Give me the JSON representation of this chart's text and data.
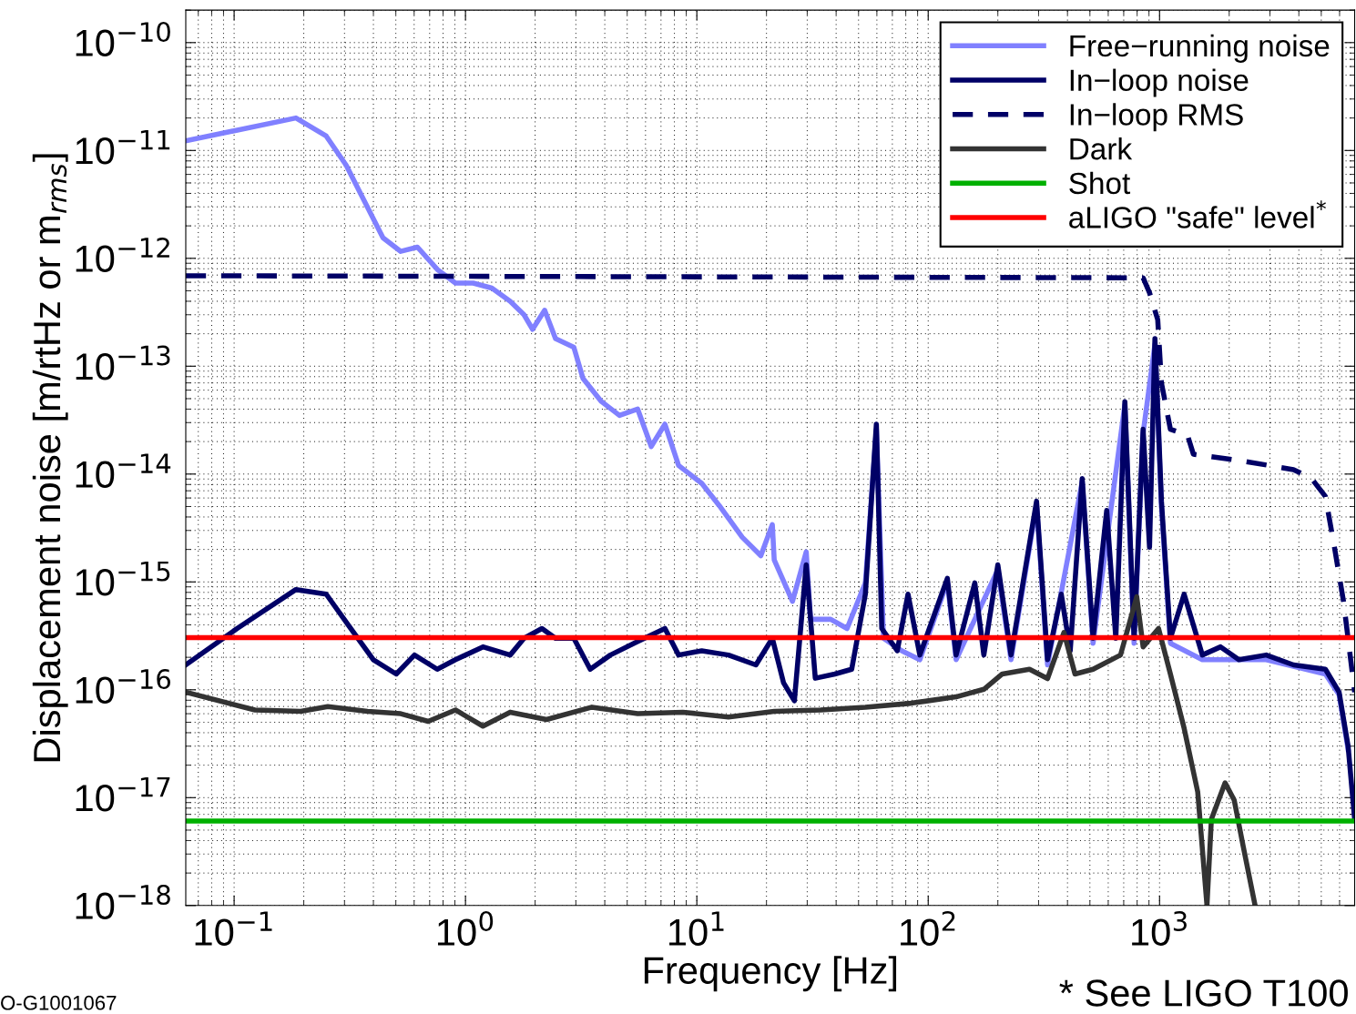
{
  "chart_data": {
    "type": "line",
    "xlabel": "Frequency [Hz]",
    "ylabel": "Displacement noise [m/rtHz or m$_{rms}$]",
    "log": "xy",
    "grid": true,
    "legend": "top right",
    "xlim": [
      0.0618,
      6970
    ],
    "ylim": [
      1e-18,
      2e-10
    ],
    "xticks": [
      {
        "value": 0.1,
        "label": "10$^{−1}$"
      },
      {
        "value": 1,
        "label": "10$^{0}$"
      },
      {
        "value": 10,
        "label": "10$^{1}$"
      },
      {
        "value": 100,
        "label": "10$^{2}$"
      },
      {
        "value": 1000,
        "label": "10$^{3}$"
      }
    ],
    "yticks": [
      {
        "value": 1e-18,
        "label": "10$^{−18}$"
      },
      {
        "value": 1e-17,
        "label": "10$^{−17}$"
      },
      {
        "value": 1e-16,
        "label": "10$^{−16}$"
      },
      {
        "value": 1e-15,
        "label": "10$^{−15}$"
      },
      {
        "value": 1e-14,
        "label": "10$^{−14}$"
      },
      {
        "value": 1e-13,
        "label": "10$^{−13}$"
      },
      {
        "value": 1e-12,
        "label": "10$^{−12}$"
      },
      {
        "value": 1e-11,
        "label": "10$^{−11}$"
      },
      {
        "value": 1e-10,
        "label": "10$^{−10}$"
      }
    ],
    "annotations": [
      "* See LIGO T100",
      "O-G1001067"
    ],
    "series": [
      {
        "name": "Free−running noise",
        "color": "#8080ff",
        "line_style": "solid",
        "x": [
          0.0618,
          0.185,
          0.25,
          0.305,
          0.44,
          0.525,
          0.62,
          0.755,
          0.905,
          1.08,
          1.3,
          1.56,
          1.79,
          1.95,
          2.2,
          2.45,
          2.94,
          3.22,
          3.87,
          4.63,
          5.55,
          6.35,
          7.28,
          8.34,
          10.5,
          12.5,
          15.7,
          18.9,
          21.2,
          21.6,
          25.9,
          29.7,
          31,
          37.9,
          44.6,
          53.5,
          59.7,
          64.1,
          76.9,
          92,
          121,
          132,
          200,
          228,
          294,
          328,
          463,
          516,
          708,
          776,
          849,
          955,
          1019,
          1114,
          1531,
          2892,
          5210,
          5970,
          6530
        ],
        "values": [
          1.23e-11,
          2e-11,
          1.36e-11,
          7.3e-12,
          1.55e-12,
          1.16e-12,
          1.27e-12,
          7.9e-13,
          5.9e-13,
          5.9e-13,
          5.3e-13,
          4e-13,
          3e-13,
          2.2e-13,
          3.3e-13,
          1.8e-13,
          1.5e-13,
          7.7e-14,
          4.7e-14,
          3.5e-14,
          4e-14,
          1.8e-14,
          2.9e-14,
          1.2e-14,
          8.2e-15,
          5.1e-15,
          2.6e-15,
          1.75e-15,
          3.4e-15,
          1.6e-15,
          6.6e-16,
          1.9e-15,
          4.5e-16,
          4.5e-16,
          3.7e-16,
          9.8e-16,
          2.6e-14,
          3e-16,
          2.3e-16,
          1.9e-16,
          1e-15,
          1.9e-16,
          1.3e-15,
          1.9e-16,
          5.2e-15,
          1.7e-16,
          8.5e-15,
          2.7e-16,
          4.4e-14,
          2.7e-16,
          2.4e-14,
          1.6e-13,
          5e-15,
          2.7e-16,
          1.9e-16,
          1.9e-16,
          1.4e-16,
          9e-17,
          2.8e-17
        ]
      },
      {
        "name": "In−loop noise",
        "color": "#000066",
        "line_style": "solid",
        "x": [
          0.0618,
          0.103,
          0.185,
          0.25,
          0.319,
          0.4,
          0.502,
          0.602,
          0.755,
          0.905,
          1.19,
          1.56,
          1.79,
          2.14,
          2.45,
          2.94,
          3.46,
          4.23,
          5.55,
          7.28,
          8.34,
          10.5,
          13.7,
          18.0,
          21.2,
          23.7,
          26.4,
          29.7,
          32.5,
          39.5,
          46.7,
          53.5,
          59.7,
          63,
          73.5,
          81.8,
          92,
          121,
          132,
          159,
          174,
          200,
          228,
          294,
          328,
          376,
          411,
          463,
          516,
          591,
          647,
          708,
          776,
          849,
          905,
          955,
          1019,
          1114,
          1277,
          1531,
          1836,
          2202,
          2892,
          3793,
          5210,
          5970,
          6530,
          6970
        ],
        "values": [
          1.7e-16,
          3.7e-16,
          8.5e-16,
          7.7e-16,
          3.7e-16,
          1.9e-16,
          1.4e-16,
          2.1e-16,
          1.55e-16,
          1.9e-16,
          2.5e-16,
          2.1e-16,
          3e-16,
          3.7e-16,
          3e-16,
          3e-16,
          1.55e-16,
          2.1e-16,
          2.8e-16,
          3.7e-16,
          2.1e-16,
          2.3e-16,
          2.1e-16,
          1.7e-16,
          3e-16,
          1.16e-16,
          7.9e-17,
          1.44e-15,
          1.28e-16,
          1.4e-16,
          1.55e-16,
          7.7e-16,
          2.9e-14,
          3.7e-16,
          2.3e-16,
          7.7e-16,
          2.1e-16,
          1.08e-15,
          2.1e-16,
          9.8e-16,
          2.1e-16,
          1.44e-15,
          2.1e-16,
          5.6e-15,
          1.9e-16,
          7.7e-16,
          2.3e-16,
          9.1e-15,
          3e-16,
          4.6e-15,
          3e-16,
          4.7e-14,
          3e-16,
          2.6e-14,
          2.1e-15,
          1.8e-13,
          5.6e-15,
          3e-16,
          7.7e-16,
          2.1e-16,
          2.5e-16,
          1.9e-16,
          2.1e-16,
          1.7e-16,
          1.55e-16,
          9.5e-17,
          3e-17,
          6.3e-18
        ]
      },
      {
        "name": "In−loop RMS",
        "color": "#000066",
        "line_style": "dashed",
        "x": [
          0.0618,
          849,
          905,
          982,
          1019,
          1114,
          1320,
          1400,
          2202,
          3793,
          4540,
          5210,
          5700,
          6240,
          6970
        ],
        "values": [
          6.9e-13,
          6.6e-13,
          4.8e-13,
          2.7e-13,
          7e-14,
          2.6e-14,
          2.3e-14,
          1.53e-14,
          1.34e-14,
          1.1e-14,
          9.1e-15,
          6.2e-15,
          2.1e-15,
          6.6e-16,
          9.5e-17
        ]
      },
      {
        "name": "Dark",
        "color": "#333333",
        "line_style": "solid",
        "x": [
          0.0618,
          0.123,
          0.194,
          0.254,
          0.377,
          0.525,
          0.69,
          0.905,
          1.19,
          1.56,
          2.24,
          3.52,
          5.55,
          8.7,
          13.7,
          21.6,
          34.3,
          53.5,
          84.1,
          132,
          174,
          209,
          274,
          328,
          386,
          431,
          516,
          678,
          797,
          849,
          990,
          1114,
          1277,
          1462,
          1603,
          1675,
          1920,
          2102,
          2301,
          2588
        ],
        "values": [
          9.5e-17,
          6.5e-17,
          6.3e-17,
          7e-17,
          6.3e-17,
          6e-17,
          5.1e-17,
          6.5e-17,
          4.6e-17,
          6.2e-17,
          5.3e-17,
          6.9e-17,
          6e-17,
          6.2e-17,
          5.6e-17,
          6.3e-17,
          6.5e-17,
          6.9e-17,
          7.5e-17,
          8.6e-17,
          1.01e-16,
          1.4e-16,
          1.55e-16,
          1.27e-16,
          3.4e-16,
          1.4e-16,
          1.55e-16,
          2.1e-16,
          7.3e-16,
          2.5e-16,
          3.7e-16,
          1.4e-16,
          4.4e-17,
          1.13e-17,
          1e-18,
          6.3e-18,
          1.37e-17,
          9.5e-18,
          3.5e-18,
          1e-18
        ]
      },
      {
        "name": "Shot",
        "color": "#00b000",
        "line_style": "solid",
        "x": [
          0.0618,
          6970
        ],
        "values": [
          6.07e-18,
          6.07e-18
        ]
      },
      {
        "name": "aLIGO \"safe\" level$^{*}$",
        "color": "#ff0000",
        "line_style": "solid",
        "x": [
          0.0618,
          6970
        ],
        "values": [
          3.05e-16,
          3.05e-16
        ]
      }
    ]
  }
}
